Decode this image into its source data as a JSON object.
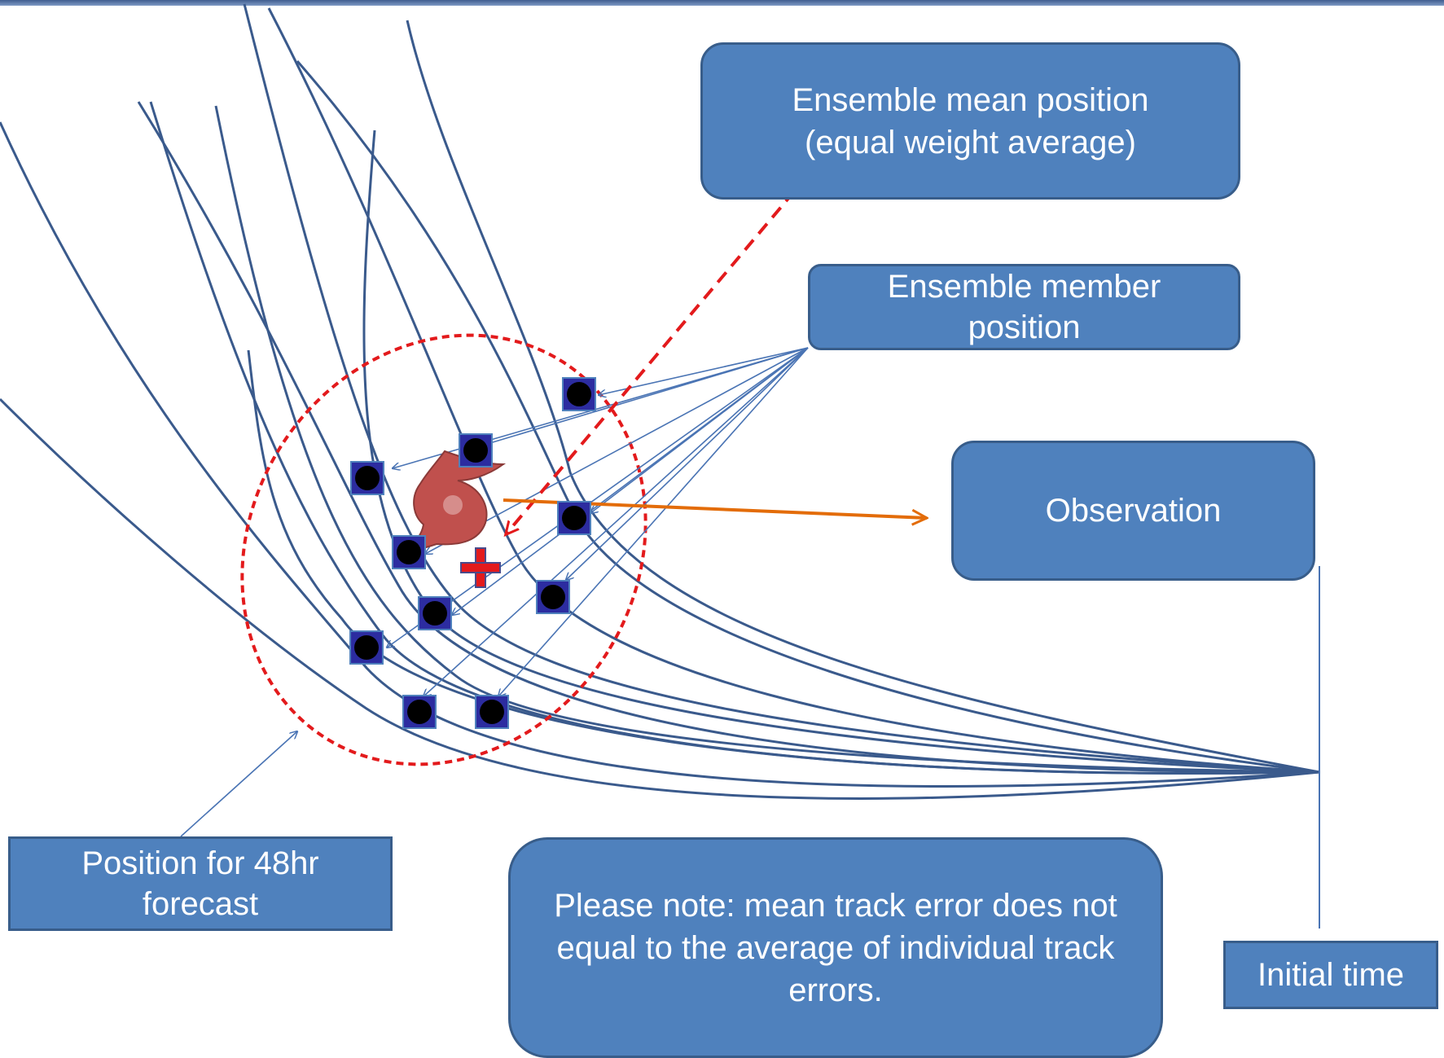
{
  "labels": {
    "ensemble_mean": "Ensemble mean position (equal weight average)",
    "ensemble_member": "Ensemble member position",
    "observation": "Observation",
    "position_48hr": "Position for 48hr forecast",
    "note": "Please note: mean track error does not equal to the average of individual track errors.",
    "initial_time": "Initial time"
  },
  "colors": {
    "box_fill": "#4f81bd",
    "box_border": "#385d8a",
    "track_line": "#3a5a8c",
    "ellipse": "#e31a1c",
    "observation_arrow": "#e36c09",
    "mean_marker": "#e31a1c",
    "member_marker_fill": "#000000",
    "member_marker_border": "#2c2ca0",
    "hurricane_symbol": "#c0504d"
  },
  "icons": {
    "observation": "hurricane-symbol-icon",
    "mean": "red-plus-icon",
    "member": "black-dot-square-icon"
  }
}
